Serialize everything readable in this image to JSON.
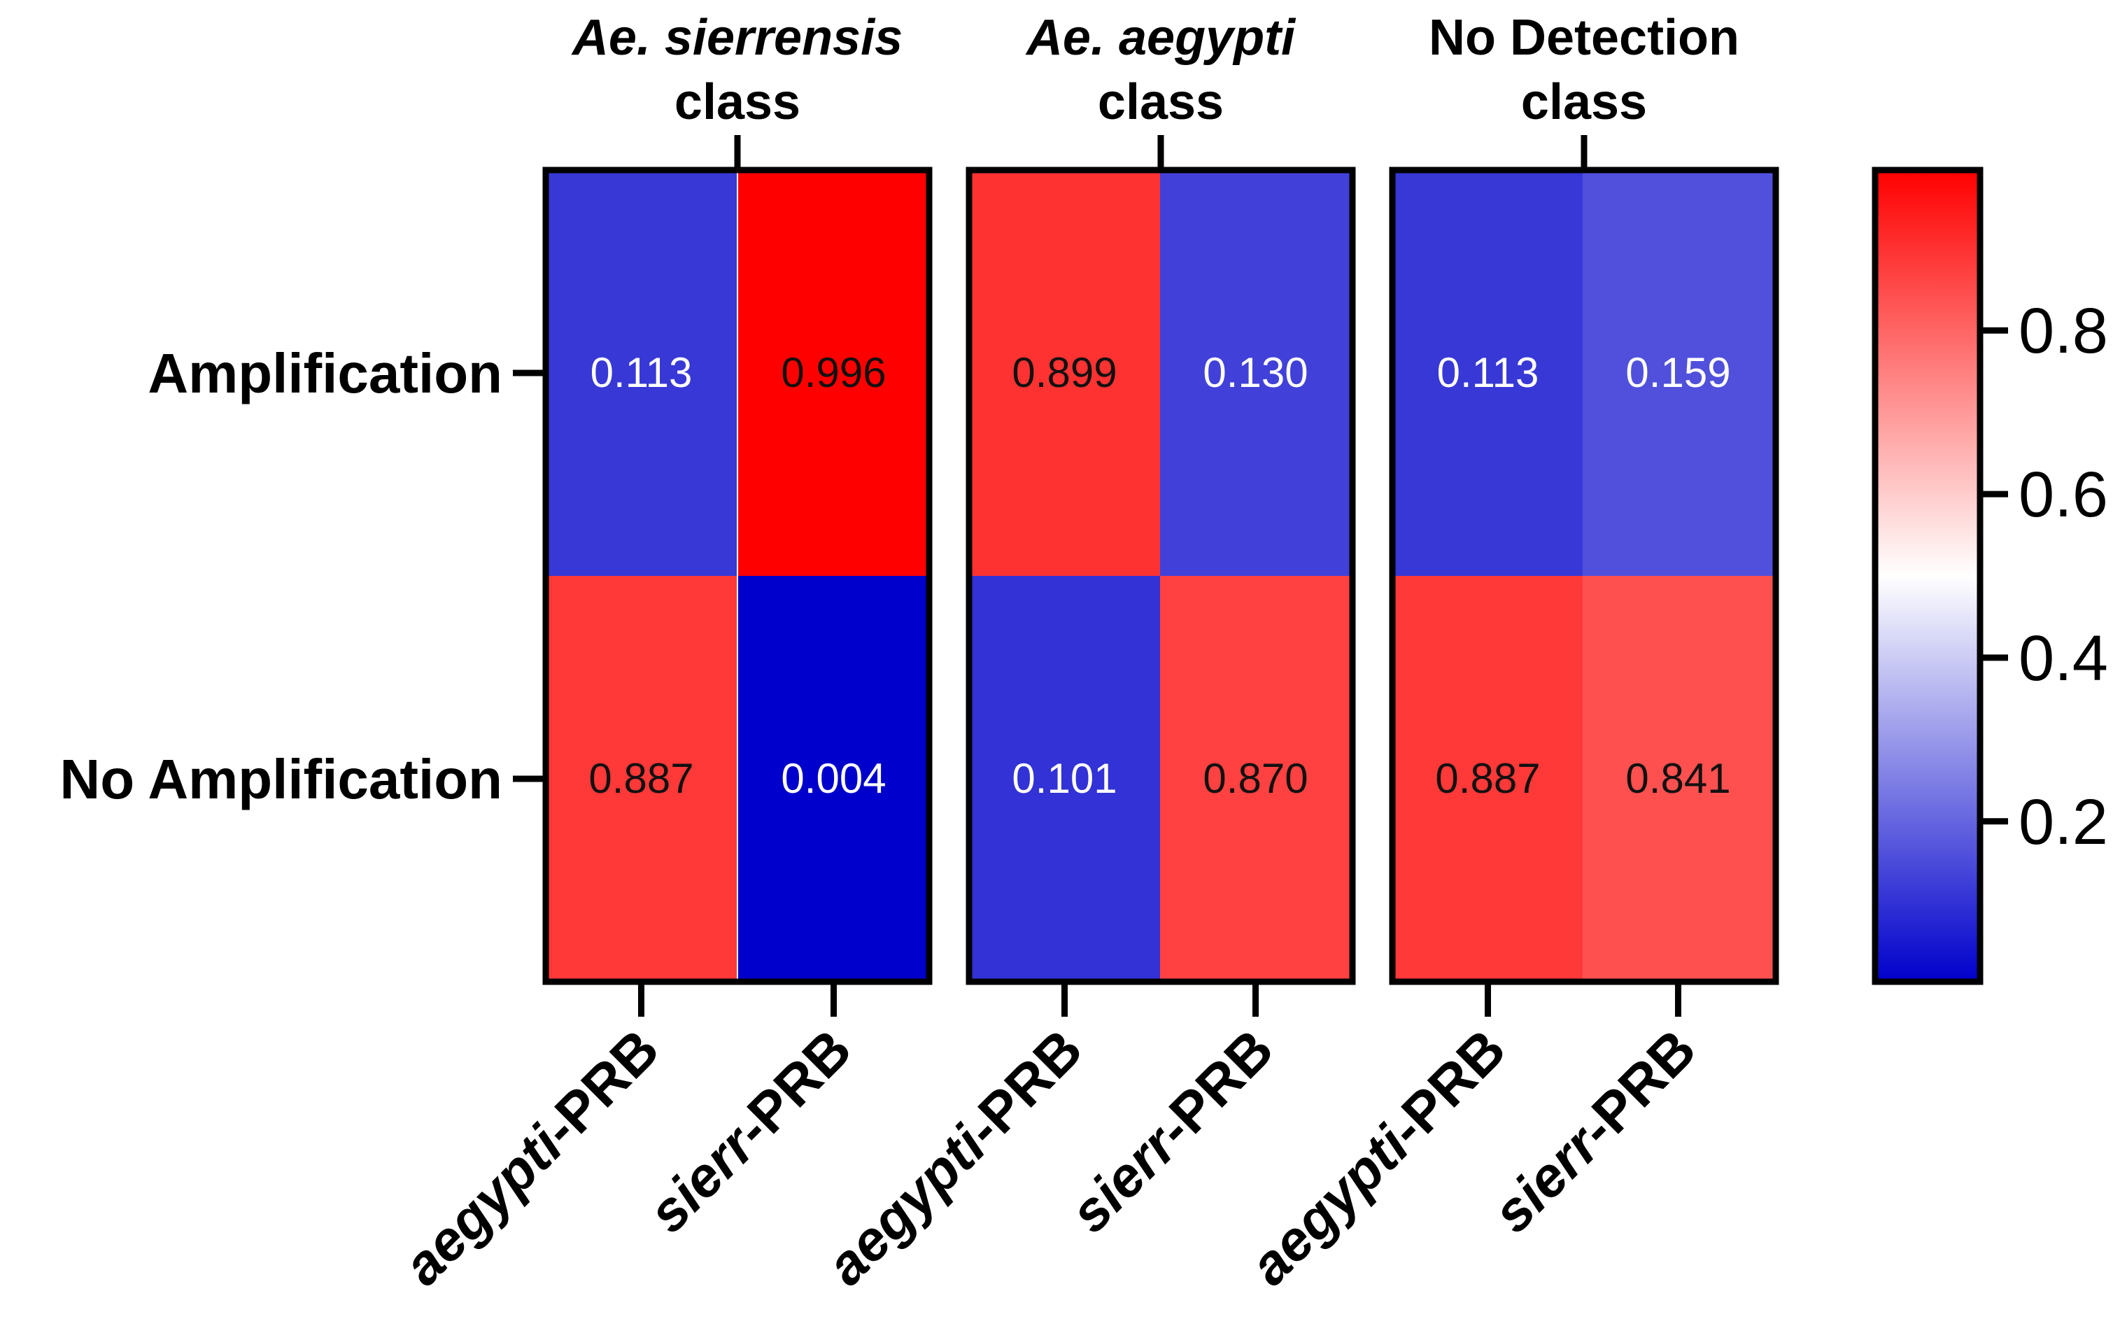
{
  "chart_data": {
    "type": "heatmap",
    "groups": [
      {
        "name_italic": "Ae. sierrensis",
        "name_rest": "class",
        "columns": [
          0,
          1
        ]
      },
      {
        "name_italic": "Ae. aegypti",
        "name_rest": "class",
        "columns": [
          2,
          3
        ]
      },
      {
        "name_italic": "",
        "name_top": "No Detection",
        "name_rest": "class",
        "columns": [
          4,
          5
        ]
      }
    ],
    "columns": [
      {
        "italic": "aegypti",
        "rest": "-PRB"
      },
      {
        "italic": "sierr",
        "rest": "-PRB"
      },
      {
        "italic": "aegypti",
        "rest": "-PRB"
      },
      {
        "italic": "sierr",
        "rest": "-PRB"
      },
      {
        "italic": "aegypti",
        "rest": "-PRB"
      },
      {
        "italic": "sierr",
        "rest": "-PRB"
      }
    ],
    "rows": [
      "Amplification",
      "No Amplification"
    ],
    "values": [
      [
        0.113,
        0.996,
        0.899,
        0.13,
        0.113,
        0.159
      ],
      [
        0.887,
        0.004,
        0.101,
        0.87,
        0.887,
        0.841
      ]
    ],
    "value_labels": [
      [
        "0.113",
        "0.996",
        "0.899",
        "0.130",
        "0.113",
        "0.159"
      ],
      [
        "0.887",
        "0.004",
        "0.101",
        "0.870",
        "0.887",
        "0.841"
      ]
    ],
    "colorbar": {
      "range": [
        0.004,
        0.996
      ],
      "ticks": [
        0.2,
        0.4,
        0.6,
        0.8
      ],
      "tick_labels": [
        "0.2",
        "0.4",
        "0.6",
        "0.8"
      ],
      "colors": {
        "low": "#0000cc",
        "mid": "#ffffff",
        "high": "#ff0000"
      }
    }
  }
}
